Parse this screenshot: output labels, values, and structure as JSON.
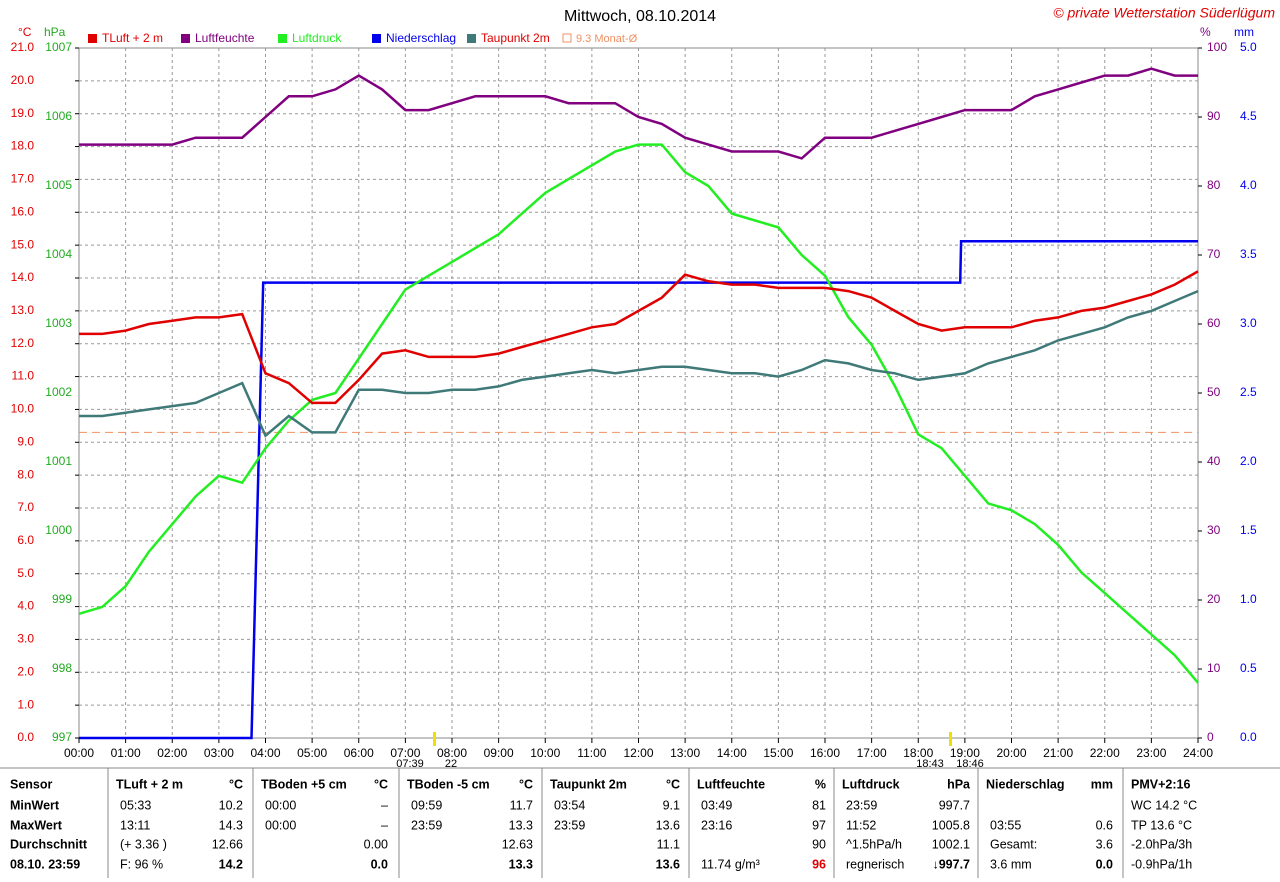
{
  "chart_data": {
    "type": "line",
    "title": "Mittwoch, 08.10.2014",
    "credit": "© private Wetterstation Süderlügum",
    "units": {
      "y": "°C",
      "y2": "hPa",
      "y3": "%",
      "y4": "mm"
    },
    "grid": true,
    "xlim": [
      0,
      24
    ],
    "xticks": [
      {
        "value": 0,
        "label": "00:00"
      },
      {
        "value": 1,
        "label": "01:00"
      },
      {
        "value": 2,
        "label": "02:00"
      },
      {
        "value": 3,
        "label": "03:00"
      },
      {
        "value": 4,
        "label": "04:00"
      },
      {
        "value": 5,
        "label": "05:00"
      },
      {
        "value": 6,
        "label": "06:00"
      },
      {
        "value": 7,
        "label": "07:00"
      },
      {
        "value": 8,
        "label": "08:00"
      },
      {
        "value": 9,
        "label": "09:00"
      },
      {
        "value": 10,
        "label": "10:00"
      },
      {
        "value": 11,
        "label": "11:00"
      },
      {
        "value": 12,
        "label": "12:00"
      },
      {
        "value": 13,
        "label": "13:00"
      },
      {
        "value": 14,
        "label": "14:00"
      },
      {
        "value": 15,
        "label": "15:00"
      },
      {
        "value": 16,
        "label": "16:00"
      },
      {
        "value": 17,
        "label": "17:00"
      },
      {
        "value": 18,
        "label": "18:00"
      },
      {
        "value": 19,
        "label": "19:00"
      },
      {
        "value": 20,
        "label": "20:00"
      },
      {
        "value": 21,
        "label": "21:00"
      },
      {
        "value": 22,
        "label": "22:00"
      },
      {
        "value": 23,
        "label": "23:00"
      },
      {
        "value": 24,
        "label": "24:00"
      }
    ],
    "ylim": [
      0,
      21
    ],
    "yticks": [
      {
        "value": 0,
        "label": "0.0"
      },
      {
        "value": 1,
        "label": "1.0"
      },
      {
        "value": 2,
        "label": "2.0"
      },
      {
        "value": 3,
        "label": "3.0"
      },
      {
        "value": 4,
        "label": "4.0"
      },
      {
        "value": 5,
        "label": "5.0"
      },
      {
        "value": 6,
        "label": "6.0"
      },
      {
        "value": 7,
        "label": "7.0"
      },
      {
        "value": 8,
        "label": "8.0"
      },
      {
        "value": 9,
        "label": "9.0"
      },
      {
        "value": 10,
        "label": "10.0"
      },
      {
        "value": 11,
        "label": "11.0"
      },
      {
        "value": 12,
        "label": "12.0"
      },
      {
        "value": 13,
        "label": "13.0"
      },
      {
        "value": 14,
        "label": "14.0"
      },
      {
        "value": 15,
        "label": "15.0"
      },
      {
        "value": 16,
        "label": "16.0"
      },
      {
        "value": 17,
        "label": "17.0"
      },
      {
        "value": 18,
        "label": "18.0"
      },
      {
        "value": 19,
        "label": "19.0"
      },
      {
        "value": 20,
        "label": "20.0"
      },
      {
        "value": 21,
        "label": "21.0"
      }
    ],
    "y2lim": [
      997,
      1007
    ],
    "y2ticks": [
      997,
      998,
      999,
      1000,
      1001,
      1002,
      1003,
      1004,
      1005,
      1006,
      1007
    ],
    "y3lim": [
      0,
      100
    ],
    "y3ticks": [
      0,
      10,
      20,
      30,
      40,
      50,
      60,
      70,
      80,
      90,
      100
    ],
    "y4lim": [
      0,
      5
    ],
    "y4ticks": [
      {
        "value": 0,
        "label": "0.0"
      },
      0.5,
      {
        "value": 1,
        "label": "1.0"
      },
      1.5,
      {
        "value": 2,
        "label": "2.0"
      },
      2.5,
      {
        "value": 3,
        "label": "3.0"
      },
      3.5,
      {
        "value": 4,
        "label": "4.0"
      },
      4.5,
      {
        "value": 5,
        "label": "5.0"
      }
    ],
    "x": [
      0,
      0.5,
      1,
      1.5,
      2,
      2.5,
      3,
      3.5,
      4,
      4.5,
      5,
      5.5,
      6,
      6.5,
      7,
      7.5,
      8,
      8.5,
      9,
      9.5,
      10,
      10.5,
      11,
      11.5,
      12,
      12.5,
      13,
      13.5,
      14,
      14.5,
      15,
      15.5,
      16,
      16.5,
      17,
      17.5,
      18,
      18.5,
      19,
      19.5,
      20,
      20.5,
      21,
      21.5,
      22,
      22.5,
      23,
      23.5,
      24
    ],
    "series": [
      {
        "name": "TLuft + 2 m",
        "color": "#e00000",
        "axis": "y",
        "values": [
          12.3,
          12.3,
          12.4,
          12.6,
          12.7,
          12.8,
          12.8,
          12.9,
          11.1,
          10.8,
          10.2,
          10.2,
          10.9,
          11.7,
          11.8,
          11.6,
          11.6,
          11.6,
          11.7,
          11.9,
          12.1,
          12.3,
          12.5,
          12.6,
          13.0,
          13.4,
          14.1,
          13.9,
          13.8,
          13.8,
          13.7,
          13.7,
          13.7,
          13.6,
          13.4,
          13.0,
          12.6,
          12.4,
          12.5,
          12.5,
          12.5,
          12.7,
          12.8,
          13.0,
          13.1,
          13.3,
          13.5,
          13.8,
          14.2
        ]
      },
      {
        "name": "Luftfeuchte",
        "color": "#800080",
        "axis": "y3",
        "values": [
          86,
          86,
          86,
          86,
          86,
          87,
          87,
          87,
          90,
          93,
          93,
          94,
          96,
          94,
          91,
          91,
          92,
          93,
          93,
          93,
          93,
          92,
          92,
          92,
          90,
          89,
          87,
          86,
          85,
          85,
          85,
          84,
          87,
          87,
          87,
          88,
          89,
          90,
          91,
          91,
          91,
          93,
          94,
          95,
          96,
          96,
          97,
          96,
          96
        ]
      },
      {
        "name": "Luftdruck",
        "color": "#22ee22",
        "axis": "y2",
        "values": [
          998.8,
          998.9,
          999.2,
          999.7,
          1000.1,
          1000.5,
          1000.8,
          1000.7,
          1001.2,
          1001.6,
          1001.9,
          1002.0,
          1002.5,
          1003.0,
          1003.5,
          1003.7,
          1003.9,
          1004.1,
          1004.3,
          1004.6,
          1004.9,
          1005.1,
          1005.3,
          1005.5,
          1005.6,
          1005.6,
          1005.2,
          1005.0,
          1004.6,
          1004.5,
          1004.4,
          1004.0,
          1003.7,
          1003.1,
          1002.7,
          1002.1,
          1001.4,
          1001.2,
          1000.8,
          1000.4,
          1000.3,
          1000.1,
          999.8,
          999.4,
          999.1,
          998.8,
          998.5,
          998.2,
          997.8
        ]
      },
      {
        "name": "Niederschlag",
        "color": "#0000ee",
        "axis": "y4",
        "x": [
          0,
          3.7,
          3.95,
          18.9,
          18.92,
          24
        ],
        "values": [
          0,
          0,
          3.3,
          3.3,
          3.6,
          3.6
        ]
      },
      {
        "name": "Taupunkt 2m",
        "color": "#3f7a78",
        "axis": "y",
        "values": [
          9.8,
          9.8,
          9.9,
          10.0,
          10.1,
          10.2,
          10.5,
          10.8,
          9.2,
          9.8,
          9.3,
          9.3,
          10.6,
          10.6,
          10.5,
          10.5,
          10.6,
          10.6,
          10.7,
          10.9,
          11.0,
          11.1,
          11.2,
          11.1,
          11.2,
          11.3,
          11.3,
          11.2,
          11.1,
          11.1,
          11.0,
          11.2,
          11.5,
          11.4,
          11.2,
          11.1,
          10.9,
          11.0,
          11.1,
          11.4,
          11.6,
          11.8,
          12.1,
          12.3,
          12.5,
          12.8,
          13.0,
          13.3,
          13.6
        ]
      }
    ],
    "reference": {
      "value": 9.3,
      "label": "9.3 Monat-Ø",
      "color": "#f09060"
    },
    "annotations": [
      "07:39",
      "22",
      "18:43",
      "18:46"
    ]
  },
  "table": {
    "header": [
      "Sensor",
      "TLuft + 2 m",
      "°C",
      "TBoden +5 cm",
      "°C",
      "TBoden -5 cm",
      "°C",
      "Taupunkt 2m",
      "°C",
      "Luftfeuchte",
      "%",
      "Luftdruck",
      "hPa",
      "Niederschlag",
      "mm",
      "PMV+2:16"
    ],
    "rows": [
      [
        "MinWert",
        "05:33",
        "10.2",
        "00:00",
        "–",
        "09:59",
        "11.7",
        "03:54",
        "9.1",
        "03:49",
        "81",
        "23:59",
        "997.7",
        null,
        null,
        "WC 14.2 °C"
      ],
      [
        "MaxWert",
        "13:11",
        "14.3",
        "00:00",
        "–",
        "23:59",
        "13.3",
        "23:59",
        "13.6",
        "23:16",
        "97",
        "11:52",
        "1005.8",
        "03:55",
        "0.6",
        "TP 13.6 °C"
      ],
      [
        "Durchschnitt",
        "(+ 3.36 )",
        "12.66",
        null,
        "0.00",
        null,
        "12.63",
        null,
        "11.1",
        null,
        "90",
        "^1.5hPa/h",
        "1002.1",
        "Gesamt:",
        "3.6",
        "-2.0hPa/3h"
      ],
      [
        "08.10. 23:59",
        "F: 96 %",
        "14.2",
        null,
        "0.0",
        null,
        "13.3",
        null,
        "13.6",
        "11.74 g/m³",
        "96",
        "regnerisch",
        "↓997.7",
        "3.6 mm",
        "0.0",
        "-0.9hPa/1h"
      ]
    ]
  }
}
